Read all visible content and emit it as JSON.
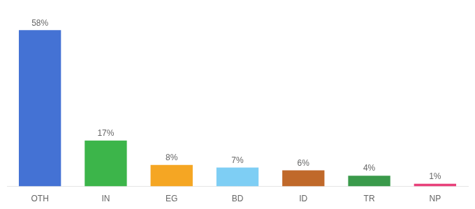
{
  "chart_data": {
    "type": "bar",
    "categories": [
      "OTH",
      "IN",
      "EG",
      "BD",
      "ID",
      "TR",
      "NP"
    ],
    "values": [
      58,
      17,
      8,
      7,
      6,
      4,
      1
    ],
    "value_labels": [
      "58%",
      "17%",
      "8%",
      "7%",
      "6%",
      "4%",
      "1%"
    ],
    "colors": [
      "#4472d4",
      "#3cb54a",
      "#f5a623",
      "#7ecef4",
      "#c0692a",
      "#3a9a4b",
      "#e8407a"
    ],
    "ylim": [
      0,
      64
    ],
    "data_labels": true,
    "tick_labels": "x",
    "grid": false
  }
}
